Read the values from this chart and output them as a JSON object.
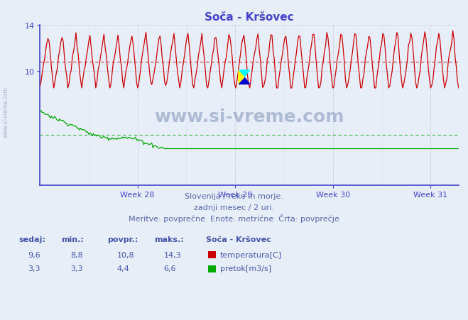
{
  "title": "Soča - Kršovec",
  "title_color": "#4444cc",
  "bg_color": "#e8eef8",
  "plot_bg_color": "#e8eef8",
  "grid_color": "#b0b8d0",
  "axis_color": "#4444cc",
  "tick_color": "#4444cc",
  "temp_color": "#cc0000",
  "flow_color": "#00aa00",
  "temp_avg": 10.8,
  "flow_avg": 4.4,
  "temp_min": 8.8,
  "temp_max": 14.3,
  "flow_min": 3.3,
  "flow_max": 6.6,
  "temp_current": 9.6,
  "flow_current": 3.3,
  "ylim_min": 0,
  "ylim_max": 14,
  "week_labels": [
    "Week 28",
    "Week 29",
    "Week 30",
    "Week 31"
  ],
  "subtitle1": "Slovenija / reke in morje.",
  "subtitle2": "zadnji mesec / 2 uri.",
  "subtitle3": "Meritve: povprečne  Enote: metrične  Črta: povprečje",
  "footer_headers": [
    "sedaj:",
    "min.:",
    "povpr.:",
    "maks.:"
  ],
  "footer_station": "Soča - Kršovec",
  "footer_temp_label": "temperatura[C]",
  "footer_flow_label": "pretok[m3/s]",
  "watermark_text": "www.si-vreme.com",
  "watermark_color": "#1a3a7a",
  "watermark_alpha": 0.28,
  "left_text": "www.si-vreme.com",
  "left_text_color": "#9999bb"
}
